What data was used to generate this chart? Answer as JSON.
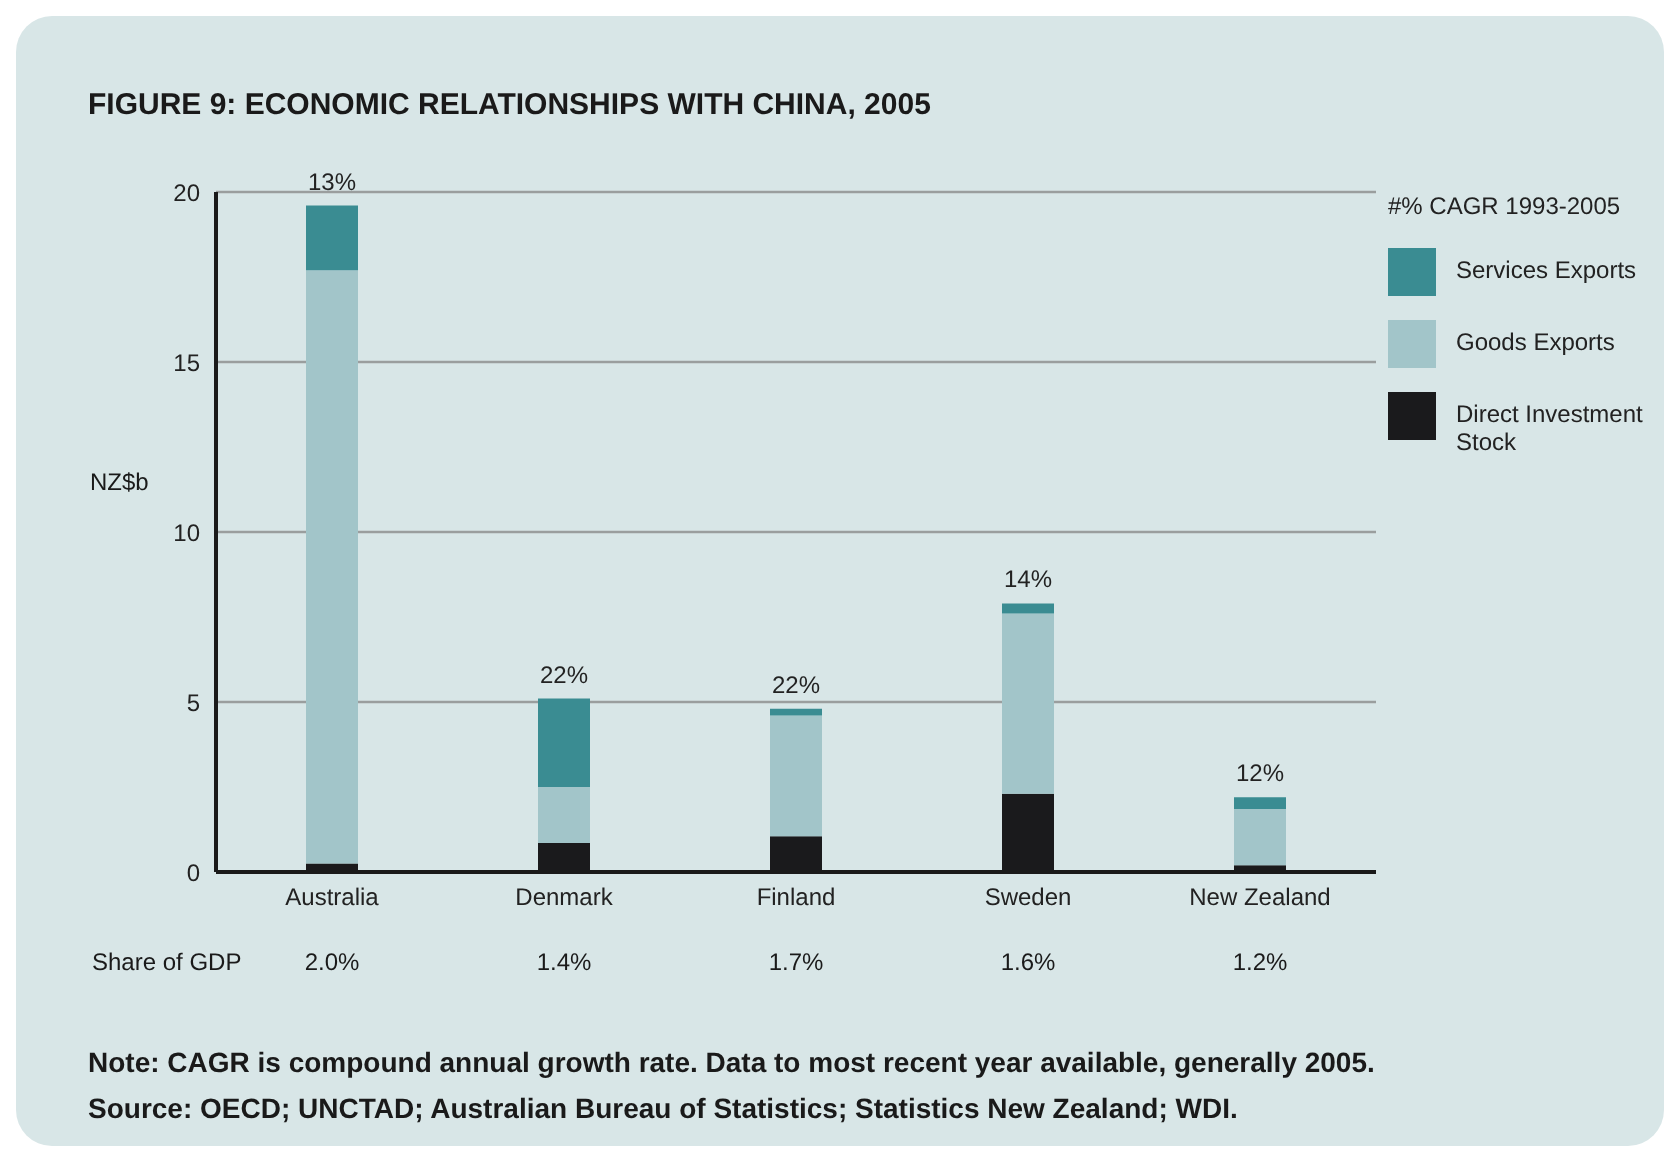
{
  "chart_data": {
    "type": "bar",
    "title": "FIGURE 9: ECONOMIC RELATIONSHIPS WITH CHINA, 2005",
    "ylabel": "NZ$b",
    "legend_title": "#% CAGR 1993-2005",
    "categories": [
      "Australia",
      "Denmark",
      "Finland",
      "Sweden",
      "New Zealand"
    ],
    "series": [
      {
        "name": "Direct Investment Stock",
        "color": "#1a1a1c",
        "values": [
          0.25,
          0.85,
          1.05,
          2.3,
          0.2
        ]
      },
      {
        "name": "Goods Exports",
        "color": "#a2c5c9",
        "values": [
          17.45,
          1.65,
          3.55,
          5.3,
          1.65
        ]
      },
      {
        "name": "Services Exports",
        "color": "#3a8c92",
        "values": [
          1.9,
          2.6,
          0.2,
          0.3,
          0.35
        ]
      }
    ],
    "stacked": true,
    "ylim": [
      0,
      20
    ],
    "yticks": [
      0,
      5,
      10,
      15,
      20
    ],
    "grid": "y",
    "legend": "top right",
    "annotations": [
      {
        "text": "13%",
        "x": "Australia",
        "y": 19.6
      },
      {
        "text": "22%",
        "x": "Denmark",
        "y": 5.1
      },
      {
        "text": "22%",
        "x": "Finland",
        "y": 4.8
      },
      {
        "text": "14%",
        "x": "Sweden",
        "y": 7.9
      },
      {
        "text": "12%",
        "x": "New Zealand",
        "y": 2.2
      },
      "Share of GDP",
      "2.0%",
      "1.4%",
      "1.7%",
      "1.6%",
      "1.2%",
      "Note: CAGR is compound annual growth rate. Data to most recent year available, generally 2005.",
      "Source: OECD; UNCTAD; Australian Bureau of Statistics; Statistics New Zealand; WDI."
    ]
  }
}
